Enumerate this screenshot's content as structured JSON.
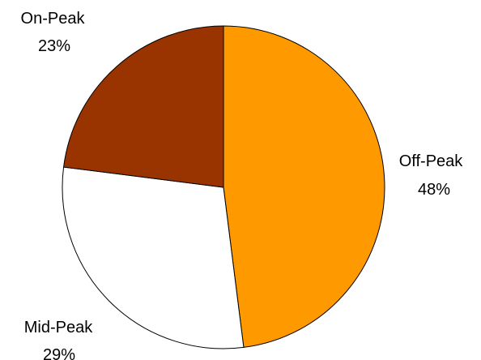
{
  "chart_data": {
    "type": "pie",
    "title": "",
    "slices": [
      {
        "label": "Off-Peak",
        "value": 48,
        "percent_label": "48%",
        "color": "#FF9900"
      },
      {
        "label": "Mid-Peak",
        "value": 29,
        "percent_label": "29%",
        "color": "#FFFFFF"
      },
      {
        "label": "On-Peak",
        "value": 23,
        "percent_label": "23%",
        "color": "#993300"
      }
    ],
    "start": "12 o'clock",
    "direction": "clockwise",
    "legend": "none"
  }
}
